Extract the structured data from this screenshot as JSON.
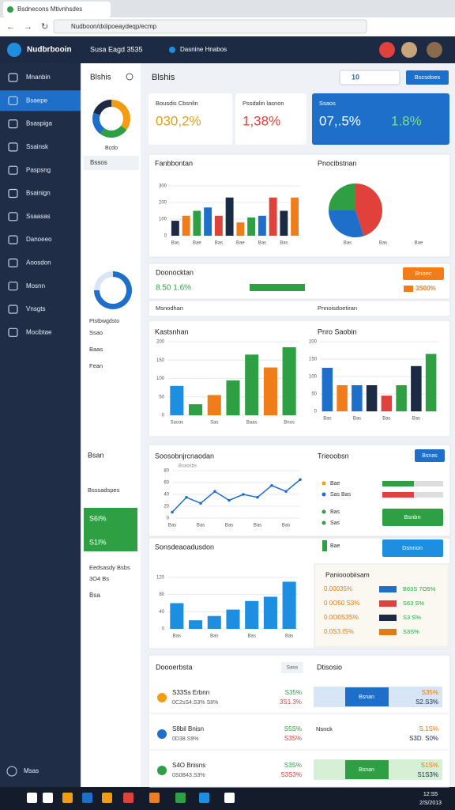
{
  "browser": {
    "tab_title": "Bsdnecons Mtivnhsdes",
    "url": "Nudboon/dxiipoeaydeqp/ecmp"
  },
  "app_header": {
    "brand": "Nudbrbooin",
    "center": "Susa Eagd 3535",
    "workspace": "Dasnine Hnabos"
  },
  "sidebar": {
    "items": [
      "Mnanbin",
      "Bsaepe",
      "Bsaspiga",
      "Ssainsk",
      "Paspsng",
      "Bsainign",
      "Ssaasas",
      "Danoeeo",
      "Aoosdon",
      "Mosnn",
      "Vnsgts",
      "Mocibtae"
    ],
    "active": 1,
    "footer": "Msas"
  },
  "subpanel": {
    "title": "Blshis",
    "donut1": {
      "label": "Bcdo",
      "values": [
        35,
        25,
        20,
        20
      ],
      "colors": [
        "#f39c12",
        "#2ea043",
        "#1e6fc9",
        "#1c2a44"
      ]
    },
    "row1": "Bssos",
    "donut2": {
      "label": "Ptstbwgdsto",
      "values": [
        75,
        25
      ],
      "colors": [
        "#1e6fc9",
        "#d6e6f7"
      ]
    },
    "links": [
      "Ssao",
      "Baas",
      "Fean"
    ],
    "section2_title": "Bsan",
    "section3_title": "Bsssadspes",
    "green_values": [
      "S6I%",
      "S1I%"
    ],
    "notes": [
      "Eedsasdy Bsbs",
      "3O4 Bs"
    ],
    "last": "Bsa"
  },
  "main": {
    "title": "Blshis",
    "page_select": "10",
    "action": "Bscsdoes"
  },
  "kpis": [
    {
      "label": "Bousdis Cbsnlin",
      "value": "030,2%"
    },
    {
      "label": "Pssdalin lasnon",
      "value": "1,38%"
    },
    {
      "label": "Ssaos",
      "value": "07,.5%",
      "value2": "1.8%"
    }
  ],
  "charts": [
    {
      "type": "bar",
      "title": "Fanbbontan",
      "categories": [
        "Bas",
        null,
        "Bae",
        null,
        "Bas",
        null,
        "Bae",
        null,
        "Bas",
        null,
        "Bas",
        null
      ],
      "values": [
        90,
        120,
        150,
        170,
        120,
        230,
        80,
        110,
        120,
        230,
        150,
        230
      ],
      "colors": [
        "#1c2a44",
        "#f07d1a",
        "#2ea043",
        "#1e6fc9",
        "#e0413a"
      ],
      "ylim": [
        0,
        300
      ],
      "yticks": [
        0,
        100,
        200,
        300
      ]
    },
    {
      "type": "pie",
      "title": "Pnocibstnan",
      "categories": [
        "Bas",
        "Bas",
        "Bae"
      ],
      "values": [
        45,
        30,
        25
      ],
      "colors": [
        "#e0413a",
        "#1e6fc9",
        "#2ea043"
      ]
    },
    {
      "type": "bar",
      "title": "Kastsnhan",
      "categories": [
        "Sacos",
        null,
        "Sas",
        null,
        "Baas",
        null,
        "Bnos"
      ],
      "values": [
        80,
        30,
        55,
        95,
        165,
        130,
        185
      ],
      "colors": [
        "#1e8fe0",
        "#2ea043",
        "#f07d1a",
        "#2ea043",
        "#2ea043",
        "#f07d1a",
        "#2ea043"
      ],
      "ylim": [
        0,
        200
      ],
      "yticks": [
        0,
        50,
        100,
        150,
        200
      ]
    },
    {
      "type": "bar",
      "title": "Pnro Saobin",
      "categories": [
        "Bas",
        null,
        "Bas",
        null,
        "Bas",
        null,
        "Bas",
        null
      ],
      "values": [
        125,
        75,
        75,
        75,
        45,
        75,
        130,
        165
      ],
      "colors": [
        "#1e6fc9",
        "#f07d1a",
        "#1e6fc9",
        "#1c2a44",
        "#e0413a",
        "#2ea043",
        "#1c2a44",
        "#2ea043"
      ],
      "ylim": [
        0,
        200
      ],
      "yticks": [
        0,
        50,
        100,
        150,
        200
      ]
    },
    {
      "type": "line",
      "title": "Soosobnjrcnaodan",
      "subtitle": "Bsaosbs",
      "categories": [
        "Bas",
        null,
        "Bas",
        null,
        "Bas",
        null,
        "Bas",
        null,
        "Bas",
        null
      ],
      "values": [
        10,
        35,
        25,
        45,
        30,
        40,
        35,
        55,
        45,
        65
      ],
      "color": "#1e6fc9",
      "ylim": [
        0,
        80
      ],
      "yticks": [
        0,
        20,
        40,
        60,
        80
      ]
    },
    {
      "type": "bar",
      "title": "Sonsdeaoadusdon",
      "categories": [
        "Bas",
        null,
        "Bas",
        null,
        "Bas",
        null,
        "Bas"
      ],
      "values": [
        60,
        20,
        30,
        45,
        65,
        75,
        110
      ],
      "color": "#1e8fe0",
      "ylim": [
        0,
        120
      ],
      "yticks": [
        0,
        40,
        80,
        120
      ]
    }
  ],
  "progress": {
    "title": "Doonocktan",
    "value": "8.50 1.6%",
    "bar_label": "3S600%",
    "button": "Bnoec",
    "button_value": "3S00%",
    "row_left": "Msnodhan",
    "row_right": "Pnnoisdoetiran"
  },
  "trend": {
    "title": "Trieoobsn",
    "button": "Bsnas",
    "items": [
      "Bae",
      "Sas Bas",
      "Bas",
      "Sas"
    ],
    "button2": "Bsnbn",
    "button3": "Dsnnon",
    "chip": "Bae"
  },
  "table": {
    "title": "Paniooobiisam",
    "rows": [
      [
        "0.00035%",
        "B63S 7O5%"
      ],
      [
        "0 0O50 S3%",
        "S63 S%"
      ],
      [
        "0.0O0S3S%",
        "S3 S%"
      ],
      [
        "0.0S3.IS%",
        "S3S%"
      ]
    ]
  },
  "bottom": {
    "title": "Doooerbsta",
    "filter": "Sass",
    "title2": "Dtisosio",
    "rows": [
      {
        "name": "S33Ss Erbnn",
        "sub": "0C2sS4.S3% S8%",
        "pct": "S35%",
        "pct2": "3S1.3%",
        "btn": "Bsnan",
        "right": "S35%",
        "right2": "S2.S3%"
      },
      {
        "name": "S8bil Bnisn",
        "sub": "0D38.S9%",
        "pct": "S5S%",
        "pct2": "S3S%",
        "btn": "Nsnck",
        "right": "S.1S%",
        "right2": "S3D. S0%"
      },
      {
        "name": "S4O Bnisns",
        "sub": "0S0B43.S3%",
        "pct": "S3S%",
        "pct2": "S3S3%",
        "btn": "Bsnan",
        "right": "S1S%",
        "right2": "S1S3%"
      }
    ]
  },
  "taskbar": {
    "time": "12:S5",
    "date": "2/S/2013"
  }
}
